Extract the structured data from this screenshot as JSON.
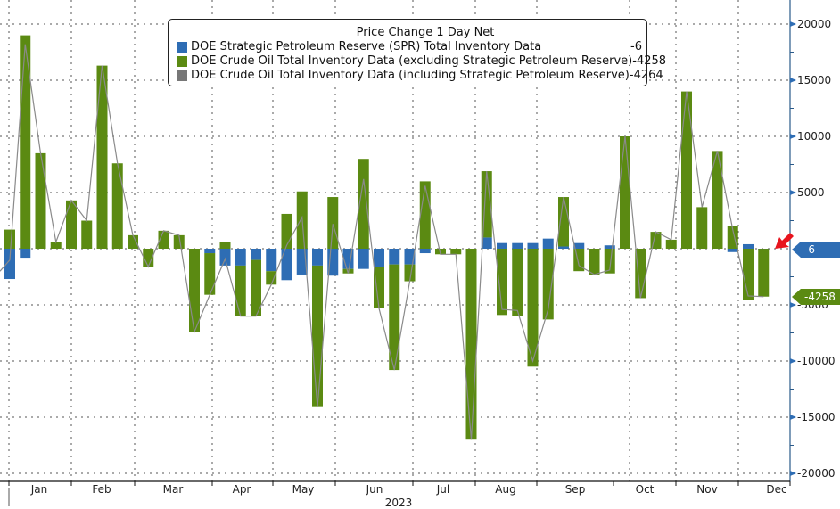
{
  "chart_data": {
    "type": "bar",
    "stacked": true,
    "title": "Price Change 1 Day Net",
    "xlabel": "2023",
    "ylabel": "",
    "ylim": [
      -20000,
      20000
    ],
    "yticks": [
      20000,
      15000,
      10000,
      5000,
      -5000,
      -10000,
      -15000,
      -20000
    ],
    "ytick_labels": [
      "20000",
      "15000",
      "10000",
      "5000",
      "-5000",
      "-10000",
      "-15000",
      "-20000"
    ],
    "month_labels": [
      "Jan",
      "Feb",
      "Mar",
      "Apr",
      "May",
      "Jun",
      "Jul",
      "Aug",
      "Sep",
      "Oct",
      "Nov",
      "Dec"
    ],
    "year_label": "2023",
    "grid": true,
    "legend_position": "top-center",
    "series": [
      {
        "name": "DOE Strategic Petroleum Reserve (SPR) Total Inventory Data",
        "color": "#2e6db4",
        "last_value": "-6",
        "values": [
          -2700,
          -800,
          0,
          0,
          0,
          0,
          0,
          0,
          0,
          0,
          0,
          0,
          0,
          -400,
          -1500,
          -1500,
          -1000,
          -2000,
          -2800,
          -2300,
          -1500,
          -2400,
          -1800,
          -1800,
          -1600,
          -1400,
          -1400,
          -400,
          0,
          0,
          0,
          1000,
          500,
          500,
          500,
          900,
          200,
          500,
          0,
          300,
          0,
          0,
          0,
          0,
          0,
          0,
          0,
          -300,
          400,
          -6
        ]
      },
      {
        "name": "DOE Crude Oil Total Inventory Data (excluding Strategic Petroleum Reserve)",
        "color": "#5b8a12",
        "last_value": "-4258",
        "values": [
          1700,
          19000,
          8500,
          600,
          4300,
          2500,
          16300,
          7600,
          1200,
          -1600,
          1600,
          1200,
          -7400,
          -3700,
          600,
          -4500,
          -5000,
          -1200,
          3100,
          5100,
          -12600,
          4600,
          -400,
          8000,
          -3700,
          -9400,
          -1500,
          6000,
          -500,
          -500,
          -17000,
          5900,
          -5900,
          -6000,
          -10500,
          -6300,
          4400,
          -2000,
          -2300,
          -2200,
          10000,
          -4400,
          1500,
          800,
          14000,
          3700,
          8700,
          2000,
          -4600,
          -4258
        ]
      },
      {
        "name": "DOE Crude Oil Total Inventory Data (including Strategic Petroleum Reserve)",
        "color": "#777777",
        "last_value": "-4264",
        "values": [
          -1000,
          18200,
          8500,
          600,
          4300,
          2500,
          16300,
          7600,
          1200,
          -1600,
          1600,
          1200,
          -7400,
          -4100,
          -900,
          -6000,
          -6000,
          -3200,
          300,
          2800,
          -14100,
          2200,
          -2200,
          6200,
          -5300,
          -10800,
          -2900,
          5600,
          -500,
          -500,
          -17000,
          6900,
          -5400,
          -5500,
          -10000,
          -5400,
          4600,
          -1500,
          -2300,
          -1900,
          10000,
          -4400,
          1500,
          800,
          14000,
          3700,
          8700,
          1700,
          -4200,
          -4264
        ]
      }
    ],
    "value_tags": [
      {
        "label": "-6",
        "color": "#2e6db4",
        "value": -6
      },
      {
        "label": "-4258",
        "color": "#5b8a12",
        "value": -4258
      }
    ],
    "annotation": "red-arrow-pointing-latest-bar"
  },
  "legend": {
    "title": "Price Change 1 Day Net",
    "items": [
      {
        "label": "DOE Strategic Petroleum Reserve (SPR) Total Inventory Data",
        "value": "-6",
        "color": "#2e6db4"
      },
      {
        "label": "DOE Crude Oil Total Inventory Data (excluding Strategic Petroleum Reserve)",
        "value": "-4258",
        "color": "#5b8a12"
      },
      {
        "label": "DOE Crude Oil Total Inventory Data (including Strategic Petroleum Reserve)",
        "value": "-4264",
        "color": "#777777"
      }
    ]
  }
}
